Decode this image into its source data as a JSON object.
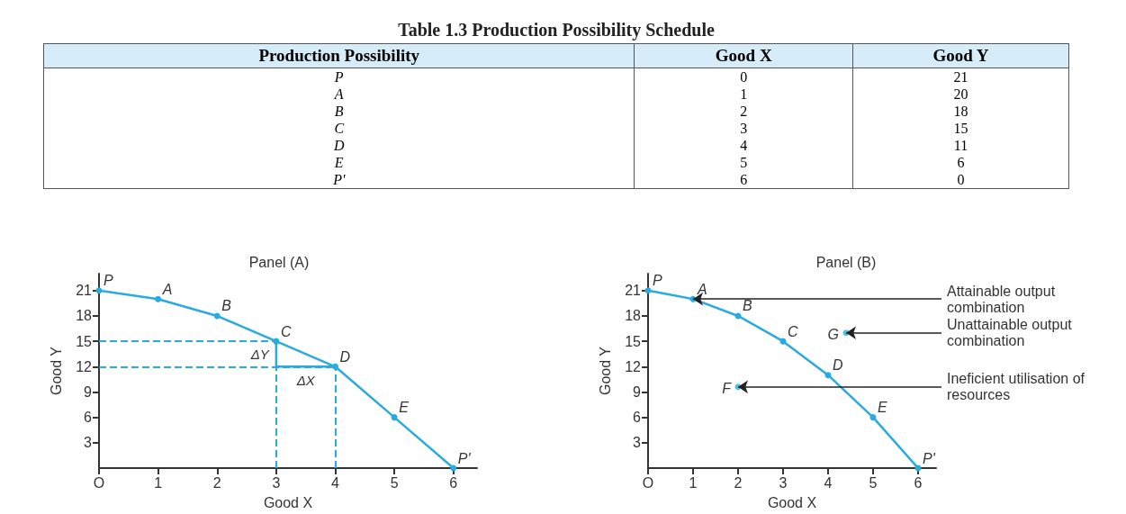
{
  "chart_data": [
    {
      "type": "other",
      "title": "Table 1.3 Production Possibility Schedule",
      "xlabel": "Production Possibility",
      "categories": [
        "P",
        "A",
        "B",
        "C",
        "D",
        "E",
        "P'"
      ],
      "series": [
        {
          "name": "Good X",
          "values": [
            0,
            1,
            2,
            3,
            4,
            5,
            6
          ]
        },
        {
          "name": "Good Y",
          "values": [
            21,
            20,
            18,
            15,
            11,
            6,
            0
          ]
        }
      ],
      "data_labels": true
    },
    {
      "type": "line",
      "title": "Panel (A)",
      "xlabel": "Good X",
      "ylabel": "Good Y",
      "x": [
        0,
        1,
        2,
        3,
        4,
        5,
        6
      ],
      "series": [
        {
          "color": "#29abe2",
          "values": [
            21,
            20,
            18,
            15,
            12,
            6,
            0
          ]
        },
        {
          "color": "#29abe2",
          "x": [
            3,
            3,
            4
          ],
          "values": [
            15,
            12,
            12
          ],
          "marker": "none"
        }
      ],
      "xlim": [
        0,
        6.4
      ],
      "ylim": [
        0,
        23
      ],
      "xticks": [
        {
          "value": 0,
          "label": "O"
        },
        1,
        2,
        3,
        4,
        5,
        6
      ],
      "yticks": [
        3,
        6,
        9,
        12,
        15,
        18,
        21
      ],
      "marker": "circle",
      "ref_lines": [
        {
          "axis": "x",
          "value": 3,
          "color": "#29abe2",
          "line_style": "dashed"
        },
        {
          "axis": "x",
          "value": 4,
          "color": "#29abe2",
          "line_style": "dashed"
        },
        {
          "axis": "y",
          "value": 15,
          "color": "#29abe2",
          "line_style": "dashed"
        },
        {
          "axis": "y",
          "value": 12,
          "color": "#29abe2",
          "line_style": "dashed"
        }
      ],
      "annotations": [
        {
          "text": "P",
          "x": 0,
          "y": 21
        },
        {
          "text": "A",
          "x": 1,
          "y": 20
        },
        {
          "text": "B",
          "x": 2,
          "y": 18
        },
        {
          "text": "C",
          "x": 3,
          "y": 15
        },
        {
          "text": "D",
          "x": 4,
          "y": 12
        },
        {
          "text": "E",
          "x": 5,
          "y": 6
        },
        {
          "text": "P'",
          "x": 6,
          "y": 0
        },
        {
          "text": "ΔY",
          "x": 3,
          "y": 13.5
        },
        {
          "text": "ΔX",
          "x": 3.5,
          "y": 12
        }
      ]
    },
    {
      "type": "line",
      "title": "Panel (B)",
      "xlabel": "Good X",
      "ylabel": "Good Y",
      "x": [
        0,
        1,
        2,
        3,
        4,
        5,
        6
      ],
      "series": [
        {
          "color": "#29abe2",
          "values": [
            21,
            20,
            18,
            15,
            11,
            6,
            0
          ]
        },
        {
          "type": "scatter",
          "color": "#29abe2",
          "x": [
            2,
            4.4
          ],
          "values": [
            9.6,
            16
          ]
        }
      ],
      "xlim": [
        0,
        6.4
      ],
      "ylim": [
        0,
        23
      ],
      "xticks": [
        {
          "value": 0,
          "label": "O"
        },
        1,
        2,
        3,
        4,
        5,
        6
      ],
      "yticks": [
        3,
        6,
        9,
        12,
        15,
        18,
        21
      ],
      "marker": "circle",
      "annotations": [
        {
          "text": "P",
          "x": 0,
          "y": 21
        },
        {
          "text": "A",
          "x": 1,
          "y": 20
        },
        {
          "text": "B",
          "x": 2,
          "y": 18
        },
        {
          "text": "C",
          "x": 3,
          "y": 15
        },
        {
          "text": "D",
          "x": 4,
          "y": 11
        },
        {
          "text": "E",
          "x": 5,
          "y": 6
        },
        {
          "text": "P'",
          "x": 6,
          "y": 0
        },
        {
          "text": "F",
          "x": 2,
          "y": 9.6
        },
        {
          "text": "G",
          "x": 4.4,
          "y": 16
        },
        {
          "text": "Attainable output combination",
          "x": 1,
          "y": 20
        },
        {
          "text": "Unattainable output combination",
          "x": 4.4,
          "y": 16
        },
        {
          "text": "Ineficient utilisation of resources",
          "x": 2,
          "y": 9.6
        }
      ]
    }
  ]
}
